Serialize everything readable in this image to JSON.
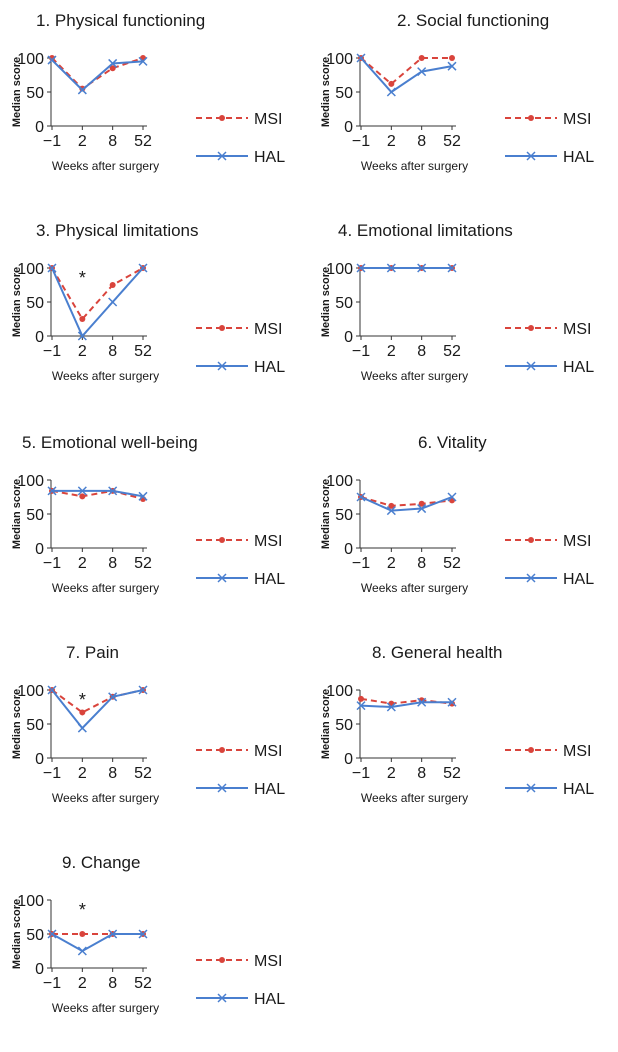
{
  "colors": {
    "MSI": "#d9443c",
    "HAL": "#4a7fcf",
    "axis": "#333333",
    "text": "#1a1a1a"
  },
  "shared": {
    "ylabel": "Median score",
    "xlabel": "Weeks after surgery",
    "xticks": [
      "−1",
      "2",
      "8",
      "52"
    ],
    "yticks": [
      "0",
      "50",
      "100"
    ],
    "legend": [
      "MSI",
      "HAL"
    ]
  },
  "chart_data": [
    {
      "type": "line",
      "title": "1. Physical functioning",
      "xlabel": "Weeks  after surgery",
      "ylabel": "Median score",
      "categories": [
        "−1",
        "2",
        "8",
        "52"
      ],
      "ylim": [
        0,
        100
      ],
      "legend": "right",
      "series": [
        {
          "name": "MSI",
          "values": [
            100,
            55,
            85,
            100
          ]
        },
        {
          "name": "HAL",
          "values": [
            97,
            53,
            92,
            95
          ]
        }
      ],
      "annotation": ""
    },
    {
      "type": "line",
      "title": "2. Social functioning",
      "xlabel": "Weeks after surgery",
      "ylabel": "Median score",
      "categories": [
        "−1",
        "2",
        "8",
        "52"
      ],
      "ylim": [
        0,
        100
      ],
      "legend": "right",
      "series": [
        {
          "name": "MSI",
          "values": [
            100,
            62,
            100,
            100
          ]
        },
        {
          "name": "HAL",
          "values": [
            100,
            50,
            80,
            88
          ]
        }
      ],
      "annotation": ""
    },
    {
      "type": "line",
      "title": "3. Physical limitations",
      "xlabel": "Weeks after surgery",
      "ylabel": "Median score",
      "categories": [
        "−1",
        "2",
        "8",
        "52"
      ],
      "ylim": [
        0,
        100
      ],
      "legend": "right",
      "series": [
        {
          "name": "MSI",
          "values": [
            100,
            25,
            75,
            100
          ]
        },
        {
          "name": "HAL",
          "values": [
            100,
            0,
            50,
            100
          ]
        }
      ],
      "annotation": "*"
    },
    {
      "type": "line",
      "title": "4. Emotional limitations",
      "xlabel": "Weeks after surgery",
      "ylabel": "Median score",
      "categories": [
        "−1",
        "2",
        "8",
        "52"
      ],
      "ylim": [
        0,
        100
      ],
      "legend": "right",
      "series": [
        {
          "name": "MSI",
          "values": [
            100,
            100,
            100,
            100
          ]
        },
        {
          "name": "HAL",
          "values": [
            100,
            100,
            100,
            100
          ]
        }
      ],
      "annotation": ""
    },
    {
      "type": "line",
      "title": "5. Emotional well-being",
      "xlabel": "Weeks after surgery",
      "ylabel": "Median score",
      "categories": [
        "−1",
        "2",
        "8",
        "52"
      ],
      "ylim": [
        0,
        100
      ],
      "legend": "right",
      "series": [
        {
          "name": "MSI",
          "values": [
            84,
            76,
            84,
            72
          ]
        },
        {
          "name": "HAL",
          "values": [
            84,
            84,
            84,
            76
          ]
        }
      ],
      "annotation": ""
    },
    {
      "type": "line",
      "title": "6. Vitality",
      "xlabel": "Weeks after surgery",
      "ylabel": "Median score",
      "categories": [
        "−1",
        "2",
        "8",
        "52"
      ],
      "ylim": [
        0,
        100
      ],
      "legend": "right",
      "series": [
        {
          "name": "MSI",
          "values": [
            75,
            62,
            65,
            70
          ]
        },
        {
          "name": "HAL",
          "values": [
            75,
            55,
            58,
            75
          ]
        }
      ],
      "annotation": ""
    },
    {
      "type": "line",
      "title": "7. Pain",
      "xlabel": "Weeks after surgery",
      "ylabel": "Median score",
      "categories": [
        "−1",
        "2",
        "8",
        "52"
      ],
      "ylim": [
        0,
        100
      ],
      "legend": "right",
      "series": [
        {
          "name": "MSI",
          "values": [
            100,
            67,
            90,
            100
          ]
        },
        {
          "name": "HAL",
          "values": [
            100,
            44,
            90,
            100
          ]
        }
      ],
      "annotation": "*"
    },
    {
      "type": "line",
      "title": "8. General health",
      "xlabel": "Weeks after surgery",
      "ylabel": "Median score",
      "categories": [
        "−1",
        "2",
        "8",
        "52"
      ],
      "ylim": [
        0,
        100
      ],
      "legend": "right",
      "series": [
        {
          "name": "MSI",
          "values": [
            87,
            80,
            85,
            80
          ]
        },
        {
          "name": "HAL",
          "values": [
            77,
            75,
            82,
            82
          ]
        }
      ],
      "annotation": ""
    },
    {
      "type": "line",
      "title": "9. Change",
      "xlabel": "Weeks after surgery",
      "ylabel": "Median score",
      "categories": [
        "−1",
        "2",
        "8",
        "52"
      ],
      "ylim": [
        0,
        100
      ],
      "legend": "right",
      "series": [
        {
          "name": "MSI",
          "values": [
            50,
            50,
            50,
            50
          ]
        },
        {
          "name": "HAL",
          "values": [
            50,
            25,
            50,
            50
          ]
        }
      ],
      "annotation": "*"
    }
  ]
}
